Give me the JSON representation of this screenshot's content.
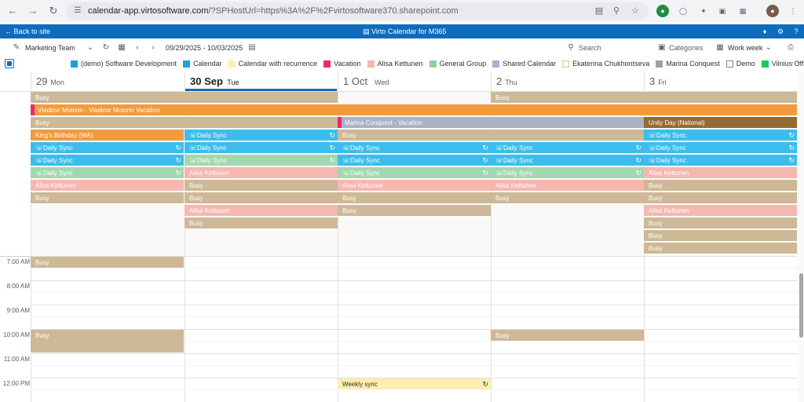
{
  "browser": {
    "url_host": "calendar-app.virtosoftware.com",
    "url_path": "/?SPHostUrl=https%3A%2F%2Fvirtosoftware370.sharepoint.com"
  },
  "app": {
    "back_label": "Back to site",
    "title": "Virto Calendar for M365"
  },
  "toolbar": {
    "calendar_name": "Marketing Team",
    "date_range": "09/29/2025 - 10/03/2025",
    "search_label": "Search",
    "categories_label": "Categories",
    "view_label": "Work week"
  },
  "legend": [
    {
      "label": "(demo) Software Development",
      "color": "#1ba1e2",
      "filled": true
    },
    {
      "label": "Calendar",
      "color": "#1ba1e2",
      "filled": true
    },
    {
      "label": "Calendar with recurrence",
      "color": "#fdedb0",
      "filled": true
    },
    {
      "label": "Vacation",
      "color": "#e8296e",
      "filled": true
    },
    {
      "label": "Alisa Kettunen",
      "color": "#f6b7b0",
      "filled": true
    },
    {
      "label": "General Group",
      "color": "#8fd19e",
      "filled": true
    },
    {
      "label": "Shared Calendar",
      "color": "#9fb4d8",
      "filled": true
    },
    {
      "label": "Ekaterina Chukhontseva",
      "color": "#b5d98a",
      "filled": false
    },
    {
      "label": "Marina Conquest",
      "color": "#9e9ea8",
      "filled": true
    },
    {
      "label": "Demo",
      "color": "#8a8886",
      "filled": false
    },
    {
      "label": "Vilnius Office",
      "color": "#22c55e",
      "filled": true
    }
  ],
  "days": [
    {
      "num": "29",
      "name": "Mon",
      "today": false
    },
    {
      "num": "30 Sep",
      "name": "Tue",
      "today": true
    },
    {
      "num": "1 Oct",
      "name": "Wed",
      "today": false
    },
    {
      "num": "2",
      "name": "Thu",
      "today": false
    },
    {
      "num": "3",
      "name": "Fri",
      "today": false
    }
  ],
  "times": [
    "7:00 AM",
    "8:00 AM",
    "9:00 AM",
    "10:00 AM",
    "11:00 AM",
    "12:00 PM"
  ],
  "allday_events": [
    {
      "title": "Busy",
      "start": 0,
      "span": 2,
      "row": 0,
      "kind": "busy"
    },
    {
      "title": "Busy",
      "start": 3,
      "span": 2,
      "row": 0,
      "kind": "busy"
    },
    {
      "title": "Vladimir Motorin - Vladimir Motorin Vacation",
      "start": 0,
      "span": 5,
      "row": 1,
      "kind": "orange",
      "accent": true
    },
    {
      "title": "Busy",
      "start": 0,
      "span": 2,
      "row": 2,
      "kind": "busy"
    },
    {
      "title": "Marina Conquest - Vacation",
      "start": 2,
      "span": 2,
      "row": 2,
      "kind": "gray",
      "accent": true
    },
    {
      "title": "Unity Day (National)",
      "start": 4,
      "span": 1,
      "row": 2,
      "kind": "brown"
    },
    {
      "title": "King's Birthday (WA)",
      "start": 0,
      "span": 1,
      "row": 3,
      "kind": "orange"
    },
    {
      "title": "Daily Sync",
      "start": 1,
      "span": 1,
      "row": 3,
      "kind": "cyan",
      "icon": true,
      "recur": true
    },
    {
      "title": "Busy",
      "start": 2,
      "span": 2,
      "row": 3,
      "kind": "busy"
    },
    {
      "title": "Daily Sync",
      "start": 4,
      "span": 1,
      "row": 3,
      "kind": "cyan",
      "icon": true,
      "recur": true
    },
    {
      "title": "Daily Sync",
      "start": 0,
      "span": 1,
      "row": 4,
      "kind": "cyan",
      "icon": true,
      "recur": true
    },
    {
      "title": "Daily Sync",
      "start": 1,
      "span": 1,
      "row": 4,
      "kind": "cyan",
      "icon": true,
      "recur": true
    },
    {
      "title": "Daily Sync",
      "start": 2,
      "span": 1,
      "row": 4,
      "kind": "cyan",
      "icon": true,
      "recur": true
    },
    {
      "title": "Daily Sync",
      "start": 3,
      "span": 1,
      "row": 4,
      "kind": "cyan",
      "icon": true,
      "recur": true
    },
    {
      "title": "Daily Sync",
      "start": 4,
      "span": 1,
      "row": 4,
      "kind": "cyan",
      "icon": true,
      "recur": true
    },
    {
      "title": "Daily Sync",
      "start": 0,
      "span": 1,
      "row": 5,
      "kind": "cyan",
      "icon": true,
      "recur": true
    },
    {
      "title": "Daily Sync",
      "start": 1,
      "span": 1,
      "row": 5,
      "kind": "green",
      "icon": true,
      "recur": true
    },
    {
      "title": "Daily Sync",
      "start": 2,
      "span": 1,
      "row": 5,
      "kind": "cyan",
      "icon": true,
      "recur": true
    },
    {
      "title": "Daily Sync",
      "start": 3,
      "span": 1,
      "row": 5,
      "kind": "cyan",
      "icon": true,
      "recur": true
    },
    {
      "title": "Daily Sync",
      "start": 4,
      "span": 1,
      "row": 5,
      "kind": "cyan",
      "icon": true,
      "recur": true
    },
    {
      "title": "Daily Sync",
      "start": 0,
      "span": 1,
      "row": 6,
      "kind": "green",
      "icon": true,
      "recur": true
    },
    {
      "title": "Alisa Kettunen",
      "start": 1,
      "span": 1,
      "row": 6,
      "kind": "pink"
    },
    {
      "title": "Daily Sync",
      "start": 2,
      "span": 1,
      "row": 6,
      "kind": "green",
      "icon": true,
      "recur": true
    },
    {
      "title": "Daily Sync",
      "start": 3,
      "span": 1,
      "row": 6,
      "kind": "green",
      "icon": true,
      "recur": true
    },
    {
      "title": "Alisa Kettunen",
      "start": 4,
      "span": 1,
      "row": 6,
      "kind": "pink"
    },
    {
      "title": "Alisa Kettunen",
      "start": 0,
      "span": 1,
      "row": 7,
      "kind": "pink"
    },
    {
      "title": "Busy",
      "start": 1,
      "span": 1,
      "row": 7,
      "kind": "busy"
    },
    {
      "title": "Alisa Kettunen",
      "start": 2,
      "span": 1,
      "row": 7,
      "kind": "pink"
    },
    {
      "title": "Alisa Kettunen",
      "start": 3,
      "span": 1,
      "row": 7,
      "kind": "pink"
    },
    {
      "title": "Busy",
      "start": 4,
      "span": 1,
      "row": 7,
      "kind": "busy"
    },
    {
      "title": "Busy",
      "start": 0,
      "span": 1,
      "row": 8,
      "kind": "busy"
    },
    {
      "title": "Busy",
      "start": 1,
      "span": 1,
      "row": 8,
      "kind": "busy"
    },
    {
      "title": "Busy",
      "start": 2,
      "span": 1,
      "row": 8,
      "kind": "busy"
    },
    {
      "title": "Busy",
      "start": 3,
      "span": 1,
      "row": 8,
      "kind": "busy"
    },
    {
      "title": "Busy",
      "start": 4,
      "span": 1,
      "row": 8,
      "kind": "busy"
    },
    {
      "title": "Alisa Kettunen",
      "start": 1,
      "span": 1,
      "row": 9,
      "kind": "pink"
    },
    {
      "title": "Busy",
      "start": 2,
      "span": 1,
      "row": 9,
      "kind": "busy"
    },
    {
      "title": "Alisa Kettunen",
      "start": 4,
      "span": 1,
      "row": 9,
      "kind": "pink"
    },
    {
      "title": "Busy",
      "start": 1,
      "span": 1,
      "row": 10,
      "kind": "busy"
    },
    {
      "title": "Busy",
      "start": 4,
      "span": 1,
      "row": 10,
      "kind": "busy"
    },
    {
      "title": "Busy",
      "start": 4,
      "span": 1,
      "row": 11,
      "kind": "busy"
    },
    {
      "title": "Busy",
      "start": 4,
      "span": 1,
      "row": 12,
      "kind": "busy"
    }
  ],
  "timed_events": [
    {
      "title": "Busy",
      "day": 0,
      "start_hour": 7.0,
      "end_hour": 7.5,
      "kind": "busy"
    },
    {
      "title": "Busy",
      "day": 0,
      "start_hour": 10.0,
      "end_hour": 11.0,
      "kind": "busy"
    },
    {
      "title": "Busy",
      "day": 3,
      "start_hour": 10.0,
      "end_hour": 10.5,
      "kind": "busy"
    },
    {
      "title": "Weekly sync",
      "day": 2,
      "start_hour": 12.0,
      "end_hour": 12.5,
      "kind": "yellow",
      "recur": true
    }
  ]
}
